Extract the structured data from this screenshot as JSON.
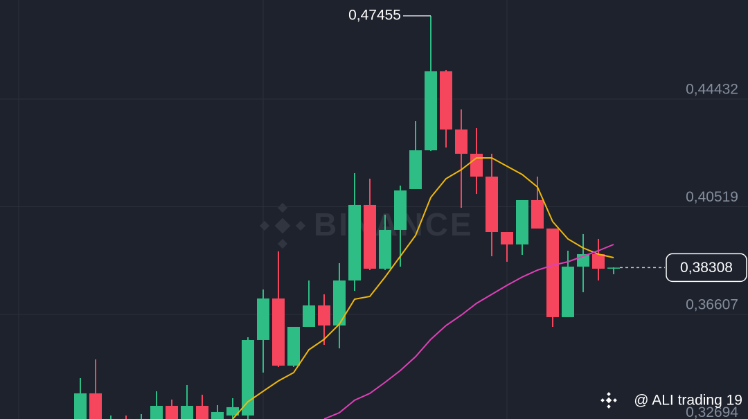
{
  "chart_data": {
    "type": "candlestick",
    "open": [
      0.32682,
      0.33739,
      0.32557,
      0.32808,
      0.32557,
      0.32682,
      0.33286,
      0.32682,
      0.33286,
      0.32808,
      0.32934,
      0.32934,
      0.35676,
      0.37186,
      0.34746,
      0.36154,
      0.36934,
      0.36205,
      0.3784,
      0.40583,
      0.38268,
      0.39677,
      0.41161,
      0.4257,
      0.45439,
      0.43325,
      0.42444,
      0.41614,
      0.39601,
      0.39149,
      0.40759,
      0.39727,
      0.36507,
      0.38343,
      0.38796,
      0.38268
    ],
    "high": [
      0.34293,
      0.34972,
      0.32934,
      0.32934,
      0.32984,
      0.33815,
      0.33513,
      0.34041,
      0.33689,
      0.33311,
      0.33563,
      0.35777,
      0.37513,
      0.38897,
      0.36154,
      0.3784,
      0.37337,
      0.38469,
      0.4174,
      0.41539,
      0.4023,
      0.41287,
      0.43627,
      0.47455,
      0.45489,
      0.44055,
      0.43375,
      0.42444,
      0.39601,
      0.40759,
      0.41614,
      0.39727,
      0.38922,
      0.39526,
      0.3935,
      0.38318
    ],
    "low": [
      0.32557,
      0.32557,
      0.32431,
      0.32431,
      0.32431,
      0.32557,
      0.32557,
      0.32557,
      0.32557,
      0.32682,
      0.32808,
      0.32808,
      0.34494,
      0.34695,
      0.34695,
      0.36154,
      0.355,
      0.35375,
      0.37463,
      0.38218,
      0.38218,
      0.38343,
      0.41161,
      0.42545,
      0.42671,
      0.40482,
      0.40985,
      0.38721,
      0.3852,
      0.38771,
      0.39727,
      0.36154,
      0.36507,
      0.37413,
      0.3784,
      0.38067
    ],
    "close": [
      0.33739,
      0.32682,
      0.32808,
      0.32557,
      0.32808,
      0.33286,
      0.32682,
      0.33286,
      0.32682,
      0.3306,
      0.33236,
      0.35676,
      0.37186,
      0.34746,
      0.36154,
      0.36934,
      0.36205,
      0.3784,
      0.40583,
      0.38268,
      0.39677,
      0.41111,
      0.4257,
      0.45439,
      0.43325,
      0.42444,
      0.41614,
      0.39601,
      0.39149,
      0.40759,
      0.39727,
      0.36507,
      0.38343,
      0.38796,
      0.38268,
      0.38308
    ],
    "up_color": "#2ebd85",
    "down_color": "#f6465d",
    "overlays": [
      {
        "color": "#f0b90b",
        "values": [
          null,
          null,
          null,
          null,
          null,
          null,
          null,
          null,
          null,
          null,
          0.32808,
          0.33437,
          0.33815,
          0.34192,
          0.34494,
          0.35324,
          0.35702,
          0.36255,
          0.37161,
          0.37262,
          0.37966,
          0.38721,
          0.39476,
          0.40859,
          0.41539,
          0.41866,
          0.42294,
          0.42294,
          0.41992,
          0.4169,
          0.41237,
          0.39979,
          0.3935,
          0.39023,
          0.38796,
          0.3867
        ]
      },
      {
        "color": "#e040b8",
        "values": [
          null,
          null,
          null,
          null,
          null,
          null,
          null,
          null,
          null,
          null,
          null,
          null,
          null,
          null,
          null,
          null,
          0.32808,
          0.33035,
          0.33488,
          0.33739,
          0.34142,
          0.34569,
          0.35073,
          0.35702,
          0.36205,
          0.36582,
          0.3701,
          0.37337,
          0.37664,
          0.37966,
          0.38218,
          0.38394,
          0.3852,
          0.38721,
          0.38922,
          0.39149
        ]
      }
    ],
    "ylim": [
      0.32694,
      0.4803
    ],
    "yticks": [
      {
        "value": 0.32694,
        "label": "0,32694"
      },
      {
        "value": 0.36607,
        "label": "0,36607"
      },
      {
        "value": 0.40519,
        "label": "0,40519"
      },
      {
        "value": 0.44432,
        "label": "0,44432"
      }
    ],
    "grid": true,
    "max_label": {
      "value": 0.47455,
      "label": "0,47455"
    },
    "last_price": {
      "value": 0.38308,
      "label": "0,38308"
    },
    "watermark": "BINANCE",
    "credit": "@ ALI trading 19"
  }
}
